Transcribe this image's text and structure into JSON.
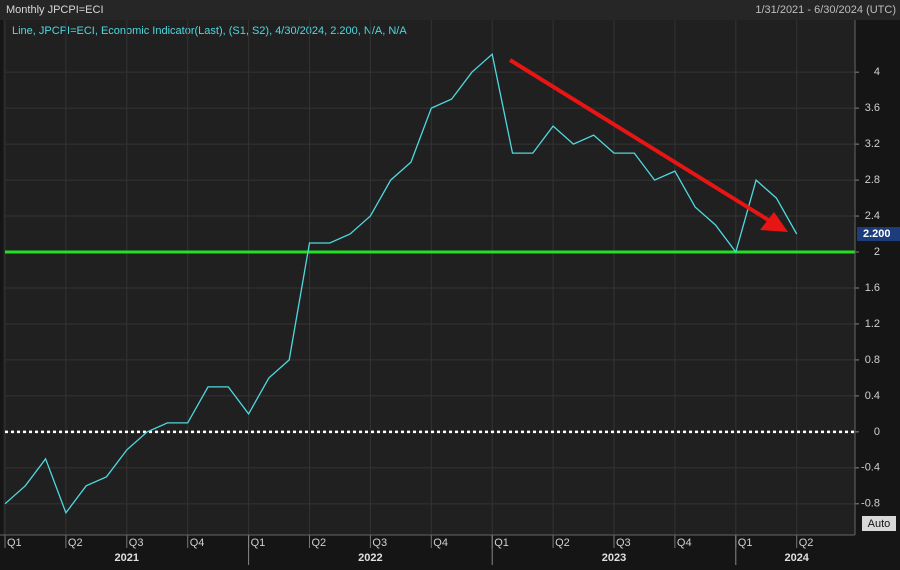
{
  "chart_data": {
    "type": "line",
    "title": "Monthly JPCPI=ECI",
    "date_range": "1/31/2021 - 6/30/2024 (UTC)",
    "legend_text": "Line, JPCPI=ECI, Economic Indicator(Last), (S1, S2), 4/30/2024, 2.200, N/A, N/A",
    "quarters": [
      "Q1",
      "Q2",
      "Q3",
      "Q4",
      "Q1",
      "Q2",
      "Q3",
      "Q4",
      "Q1",
      "Q2",
      "Q3",
      "Q4",
      "Q1",
      "Q2"
    ],
    "years": [
      "2021",
      "2022",
      "2023",
      "2024"
    ],
    "series": [
      {
        "name": "JPCPI=ECI",
        "color": "#4fd8e0",
        "values": [
          -0.8,
          -0.6,
          -0.3,
          -0.9,
          -0.6,
          -0.5,
          -0.2,
          0.0,
          0.1,
          0.1,
          0.5,
          0.5,
          0.2,
          0.6,
          0.8,
          2.1,
          2.1,
          2.2,
          2.4,
          2.8,
          3.0,
          3.6,
          3.7,
          4.0,
          4.2,
          3.1,
          3.1,
          3.4,
          3.2,
          3.3,
          3.1,
          3.1,
          2.8,
          2.9,
          2.5,
          2.3,
          2.0,
          2.8,
          2.6,
          2.2
        ]
      }
    ],
    "last_value": {
      "value": 2.2,
      "label": "2.200"
    },
    "reference_lines": [
      {
        "value": 2,
        "color": "#22e022",
        "style": "solid"
      },
      {
        "value": 0,
        "color": "#ffffff",
        "style": "dotted"
      }
    ],
    "ylim": [
      -0.98,
      4.58
    ],
    "yticks": [
      -0.8,
      -0.4,
      0,
      0.4,
      0.8,
      1.2,
      1.6,
      2,
      2.4,
      2.8,
      3.2,
      3.6,
      4
    ],
    "grid": true,
    "scale_button": "Auto"
  }
}
